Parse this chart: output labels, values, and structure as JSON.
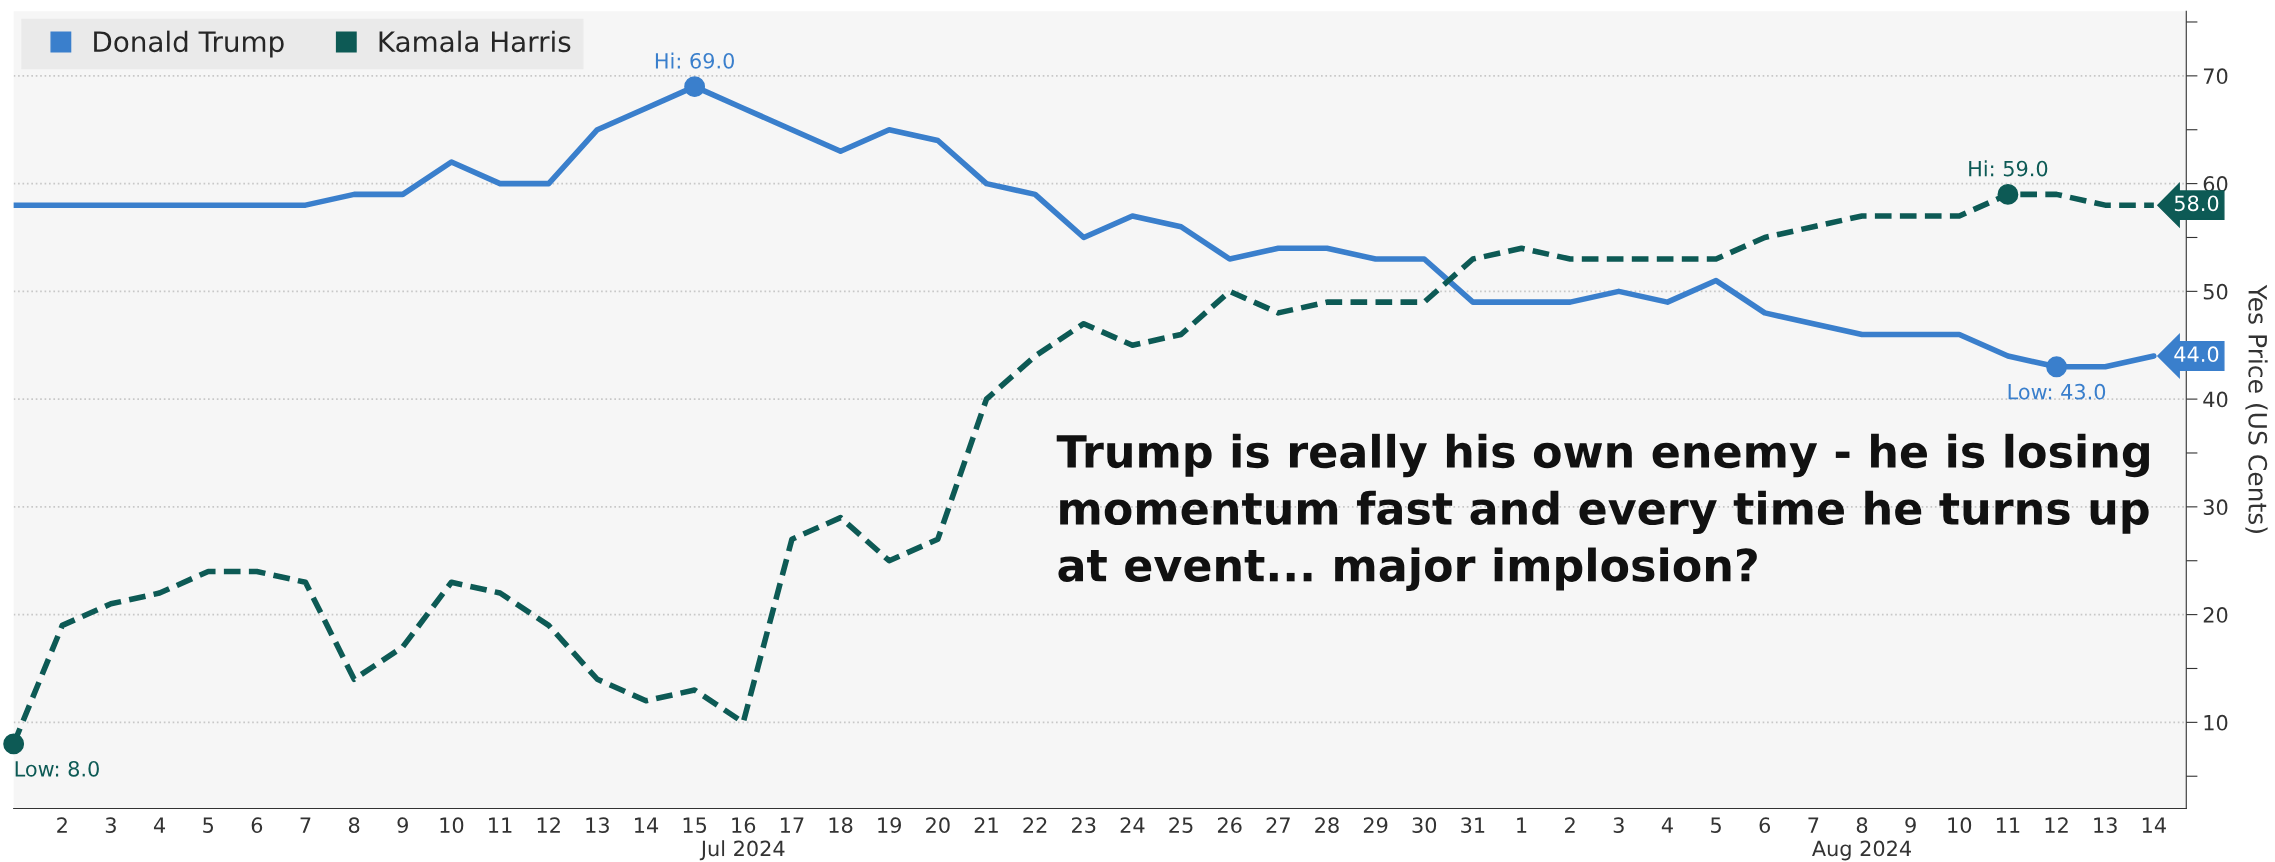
{
  "chart_data": {
    "type": "line",
    "x": [
      "2024-07-01",
      "2024-07-02",
      "2024-07-03",
      "2024-07-04",
      "2024-07-05",
      "2024-07-06",
      "2024-07-07",
      "2024-07-08",
      "2024-07-09",
      "2024-07-10",
      "2024-07-11",
      "2024-07-12",
      "2024-07-13",
      "2024-07-14",
      "2024-07-15",
      "2024-07-16",
      "2024-07-17",
      "2024-07-18",
      "2024-07-19",
      "2024-07-20",
      "2024-07-21",
      "2024-07-22",
      "2024-07-23",
      "2024-07-24",
      "2024-07-25",
      "2024-07-26",
      "2024-07-27",
      "2024-07-28",
      "2024-07-29",
      "2024-07-30",
      "2024-07-31",
      "2024-08-01",
      "2024-08-02",
      "2024-08-03",
      "2024-08-04",
      "2024-08-05",
      "2024-08-06",
      "2024-08-07",
      "2024-08-08",
      "2024-08-09",
      "2024-08-10",
      "2024-08-11",
      "2024-08-12",
      "2024-08-13",
      "2024-08-14"
    ],
    "series": [
      {
        "name": "Donald Trump",
        "color": "#3a7fcc",
        "line_style": "solid",
        "values": [
          58,
          58,
          58,
          58,
          58,
          58,
          58,
          59,
          59,
          62,
          60,
          60,
          65,
          67,
          69,
          67,
          65,
          63,
          65,
          64,
          60,
          59,
          55,
          57,
          56,
          53,
          54,
          54,
          53,
          53,
          49,
          49,
          49,
          50,
          49,
          51,
          48,
          47,
          46,
          46,
          46,
          44,
          43,
          43,
          44
        ],
        "value_labels": [
          null,
          null,
          null,
          null,
          null,
          null,
          null,
          null,
          null,
          null,
          null,
          null,
          null,
          null,
          "Hi: 69.0",
          null,
          null,
          null,
          null,
          null,
          null,
          null,
          null,
          null,
          null,
          null,
          null,
          null,
          null,
          null,
          null,
          null,
          null,
          null,
          null,
          null,
          null,
          null,
          null,
          null,
          null,
          null,
          "Low: 43.0",
          null,
          "44.0"
        ]
      },
      {
        "name": "Kamala Harris",
        "color": "#0d5a55",
        "line_style": "dashed",
        "values": [
          8,
          19,
          21,
          22,
          24,
          24,
          23,
          14,
          17,
          23,
          22,
          19,
          14,
          12,
          13,
          10,
          27,
          29,
          25,
          27,
          40,
          44,
          47,
          45,
          46,
          50,
          48,
          49,
          49,
          49,
          53,
          54,
          53,
          53,
          53,
          53,
          55,
          56,
          57,
          57,
          57,
          59,
          59,
          58,
          58
        ],
        "value_labels": [
          "Low: 8.0",
          null,
          null,
          null,
          null,
          null,
          null,
          null,
          null,
          null,
          null,
          null,
          null,
          null,
          null,
          null,
          null,
          null,
          null,
          null,
          null,
          null,
          null,
          null,
          null,
          null,
          null,
          null,
          null,
          null,
          null,
          null,
          null,
          null,
          null,
          null,
          null,
          null,
          null,
          null,
          null,
          "Hi: 59.0",
          null,
          null,
          "58.0"
        ]
      }
    ],
    "xlim": [
      "2024-07-01",
      "2024-08-14T16:00"
    ],
    "xticks": [
      {
        "value": "2024-07-02",
        "label": "2"
      },
      {
        "value": "2024-07-03",
        "label": "3"
      },
      {
        "value": "2024-07-04",
        "label": "4"
      },
      {
        "value": "2024-07-05",
        "label": "5"
      },
      {
        "value": "2024-07-06",
        "label": "6"
      },
      {
        "value": "2024-07-07",
        "label": "7"
      },
      {
        "value": "2024-07-08",
        "label": "8"
      },
      {
        "value": "2024-07-09",
        "label": "9"
      },
      {
        "value": "2024-07-10",
        "label": "10"
      },
      {
        "value": "2024-07-11",
        "label": "11"
      },
      {
        "value": "2024-07-12",
        "label": "12"
      },
      {
        "value": "2024-07-13",
        "label": "13"
      },
      {
        "value": "2024-07-14",
        "label": "14"
      },
      {
        "value": "2024-07-15",
        "label": "15"
      },
      {
        "value": "2024-07-16",
        "label": "16\nJul 2024"
      },
      {
        "value": "2024-07-17",
        "label": "17"
      },
      {
        "value": "2024-07-18",
        "label": "18"
      },
      {
        "value": "2024-07-19",
        "label": "19"
      },
      {
        "value": "2024-07-20",
        "label": "20"
      },
      {
        "value": "2024-07-21",
        "label": "21"
      },
      {
        "value": "2024-07-22",
        "label": "22"
      },
      {
        "value": "2024-07-23",
        "label": "23"
      },
      {
        "value": "2024-07-24",
        "label": "24"
      },
      {
        "value": "2024-07-25",
        "label": "25"
      },
      {
        "value": "2024-07-26",
        "label": "26"
      },
      {
        "value": "2024-07-27",
        "label": "27"
      },
      {
        "value": "2024-07-28",
        "label": "28"
      },
      {
        "value": "2024-07-29",
        "label": "29"
      },
      {
        "value": "2024-07-30",
        "label": "30"
      },
      {
        "value": "2024-07-31",
        "label": "31"
      },
      {
        "value": "2024-08-01",
        "label": "1"
      },
      {
        "value": "2024-08-02",
        "label": "2"
      },
      {
        "value": "2024-08-03",
        "label": "3"
      },
      {
        "value": "2024-08-04",
        "label": "4"
      },
      {
        "value": "2024-08-05",
        "label": "5"
      },
      {
        "value": "2024-08-06",
        "label": "6"
      },
      {
        "value": "2024-08-07",
        "label": "7"
      },
      {
        "value": "2024-08-08",
        "label": "8\nAug 2024"
      },
      {
        "value": "2024-08-09",
        "label": "9"
      },
      {
        "value": "2024-08-10",
        "label": "10"
      },
      {
        "value": "2024-08-11",
        "label": "11"
      },
      {
        "value": "2024-08-12",
        "label": "12"
      },
      {
        "value": "2024-08-13",
        "label": "13"
      },
      {
        "value": "2024-08-14",
        "label": "14"
      }
    ],
    "ylim": [
      2,
      76
    ],
    "yticks": [
      {
        "value": 5,
        "label": null
      },
      10,
      {
        "value": 15,
        "label": null
      },
      20,
      {
        "value": 25,
        "label": null
      },
      30,
      {
        "value": 35,
        "label": null
      },
      40,
      {
        "value": 45,
        "label": null
      },
      50,
      {
        "value": 55,
        "label": null
      },
      60,
      {
        "value": 65,
        "label": null
      },
      70,
      {
        "value": 75,
        "label": null
      }
    ],
    "ylabel": "Yes Price (US Cents)",
    "annotations": [
      "Trump is really his own enemy - he is losing momentum fast and every time he turns up at event... major implosion?"
    ],
    "grid": "y",
    "legend": "top left",
    "marker": "none"
  }
}
